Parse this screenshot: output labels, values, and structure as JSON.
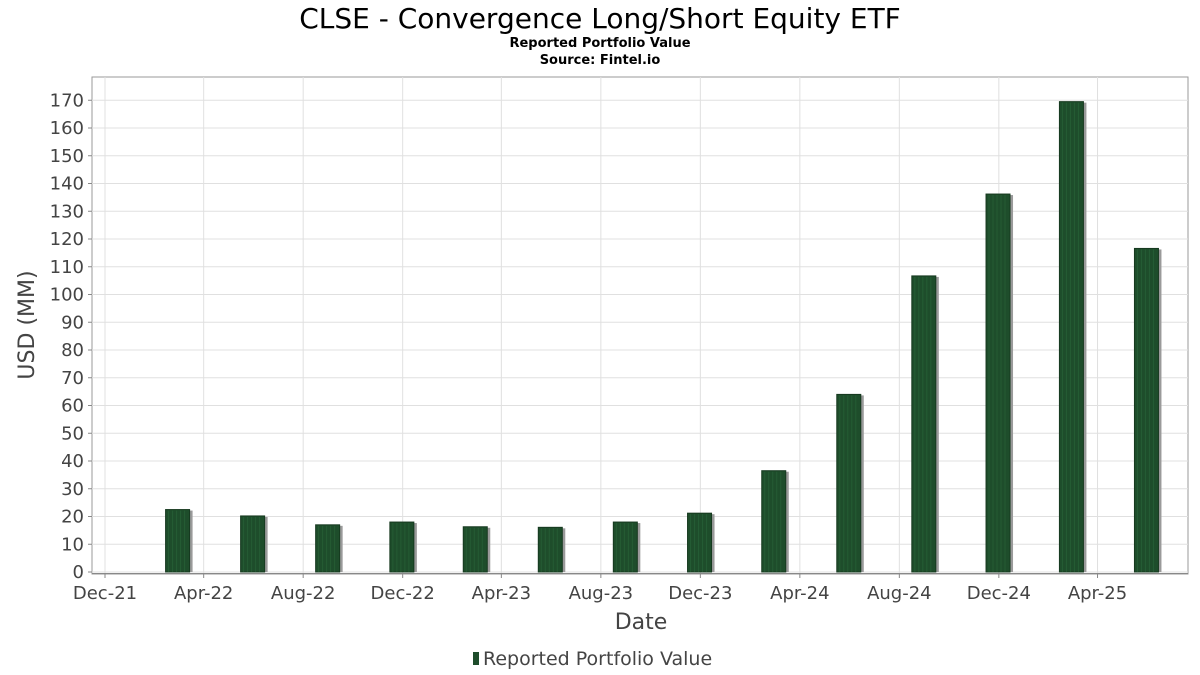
{
  "chart_data": {
    "type": "bar",
    "title": "CLSE - Convergence Long/Short Equity ETF",
    "subtitle": "Reported Portfolio Value",
    "source": "Source: Fintel.io",
    "xlabel": "Date",
    "ylabel": "USD (MM)",
    "ylim": [
      0,
      175
    ],
    "y_ticks": [
      0,
      10,
      20,
      30,
      40,
      50,
      60,
      70,
      80,
      90,
      100,
      110,
      120,
      130,
      140,
      150,
      160,
      170
    ],
    "x_range": [
      "2021-12-01",
      "2025-07-05"
    ],
    "x_ticks": [
      {
        "label": "Dec-21",
        "date": "2021-12-01"
      },
      {
        "label": "Apr-22",
        "date": "2022-04-01"
      },
      {
        "label": "Aug-22",
        "date": "2022-08-01"
      },
      {
        "label": "Dec-22",
        "date": "2022-12-01"
      },
      {
        "label": "Apr-23",
        "date": "2023-04-01"
      },
      {
        "label": "Aug-23",
        "date": "2023-08-01"
      },
      {
        "label": "Dec-23",
        "date": "2023-12-01"
      },
      {
        "label": "Apr-24",
        "date": "2024-04-01"
      },
      {
        "label": "Aug-24",
        "date": "2024-08-01"
      },
      {
        "label": "Dec-24",
        "date": "2024-12-01"
      },
      {
        "label": "Apr-25",
        "date": "2025-04-01"
      }
    ],
    "series": [
      {
        "name": "Reported Portfolio Value",
        "color": "#1e4d2b",
        "points": [
          {
            "date": "2022-02-28",
            "value": 22.5
          },
          {
            "date": "2022-05-31",
            "value": 20.2
          },
          {
            "date": "2022-08-31",
            "value": 17.0
          },
          {
            "date": "2022-11-30",
            "value": 18.0
          },
          {
            "date": "2023-02-28",
            "value": 16.3
          },
          {
            "date": "2023-05-31",
            "value": 16.1
          },
          {
            "date": "2023-08-31",
            "value": 18.0
          },
          {
            "date": "2023-11-30",
            "value": 21.2
          },
          {
            "date": "2024-02-29",
            "value": 36.5
          },
          {
            "date": "2024-05-31",
            "value": 64.0
          },
          {
            "date": "2024-08-31",
            "value": 106.7
          },
          {
            "date": "2024-11-30",
            "value": 136.2
          },
          {
            "date": "2025-02-28",
            "value": 169.5
          },
          {
            "date": "2025-05-31",
            "value": 116.6
          }
        ]
      }
    ],
    "grid": true,
    "legend": "bottom-center"
  }
}
